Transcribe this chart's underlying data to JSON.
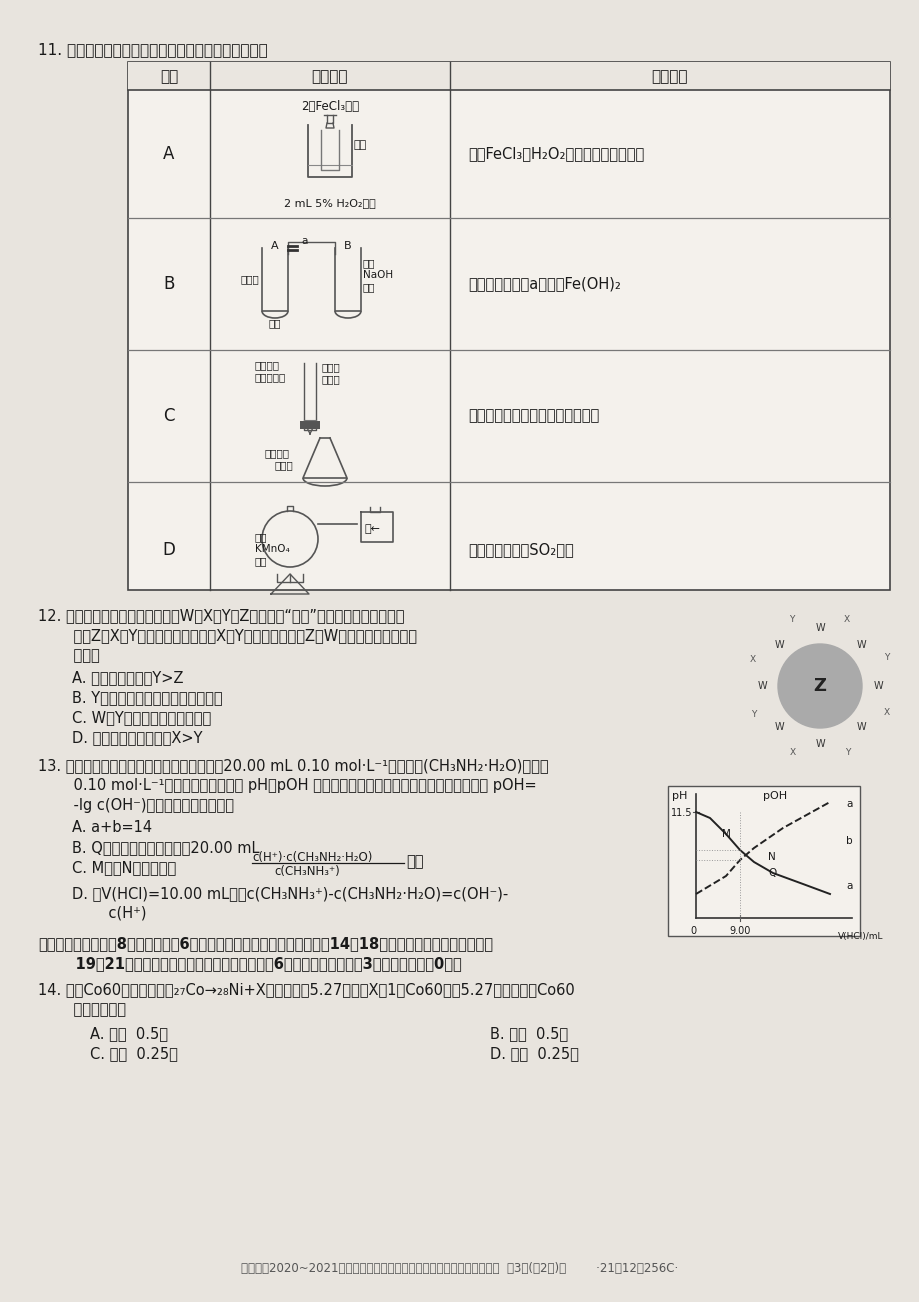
{
  "bg_color": "#f0ede8",
  "page_bg": "#e8e4de",
  "text_color": "#2a2a2a",
  "title_q11": "11. 下列实验方案设计合理且能达到相应实验目的的是",
  "table_col1": "选项",
  "table_col2": "实验方案",
  "table_col3": "实验目的",
  "row_A_purpose": "验证FeCl₃对H₂O₂分解反应有偶化作用",
  "row_B_purpose": "通过控制止水夹a来制取Fe(OH)₂",
  "row_C_purpose": "用高锄酸鼾标准溶液滴定草酸溶液",
  "row_D_purpose": "验证火柴燃烧有SO₂生成",
  "q12_line1": "12. 由位于元素周期表前三周期的W、X、Y、Z四种元素“组合”成的一种超分子结构如",
  "q12_line2": "    图。Z、X、Y的族序数依次增大，X、Y位于同一周期，Z与W同主族。下列说法正",
  "q12_line3": "    确的是",
  "q12_A": "A. 简单离子半径：Y>Z",
  "q12_B": "B. Y的单质的氧化性在同主族中最弱",
  "q12_C": "C. W与Y可组成多种离子化合物",
  "q12_D": "D. 氢化物的热稳定性：X>Y",
  "q13_line1": "13. 甲胺广泛用于医药和农药制造。常温下向20.00 mL 0.10 mol·L⁻¹甲胺溶液(CH₃NH₂·H₂O)中滴加",
  "q13_line2": "    0.10 mol·L⁻¹的盐酸，混合溶液的 pH、pOH 随加入盐酸的体积的变化曲线如图所示。已知 pOH=",
  "q13_line3": "    -lg c(OH⁻)。下列说法不正确的是",
  "q13_A": "A. a+b=14",
  "q13_B": "B. Q点消耗盐酸的体积小于20.00 mL",
  "q13_C_pre": "C. M点和N点溶液中，",
  "q13_C_suf": "相等",
  "q13_C_num": "c(H⁺)·c(CH₃NH₂·H₂O)",
  "q13_C_den": "c(CH₃NH₃⁺)",
  "q13_D1": "D. 当V(HCl)=10.00 mL时，c(CH₃NH₃⁺)-c(CH₃NH₂·H₂O)=c(OH⁻)-",
  "q13_D2": "    c(H⁺)",
  "s2_line1": "二、选择题：本题兲8小题，每小题6分。在每小题给出的四个选项中，第14～18题只有一项符合题目要求，第",
  "s2_line2": "    19～21题有多项符合题目要求。全部选对的得6分，选对但不全的得3分，有选错的得0分。",
  "q14_line1": "14. 已知Co60的衰变方程为₂₇Co→₂₈Ni+X，半衰期为5.27年，则X和1克Co60经过5.27年后还剩下Co60",
  "q14_line2": "    的质量分别为",
  "q14_A": "A. 质子  0.5克",
  "q14_B": "B. 电子  0.5克",
  "q14_C": "C. 质子  0.25克",
  "q14_D": "D. 电子  0.25克",
  "footer": "【商洛南2020~2021学年度第一学期期末教学质量检测高三理科综合试卷  第3页(共2页)】        ·21－12－256C·"
}
